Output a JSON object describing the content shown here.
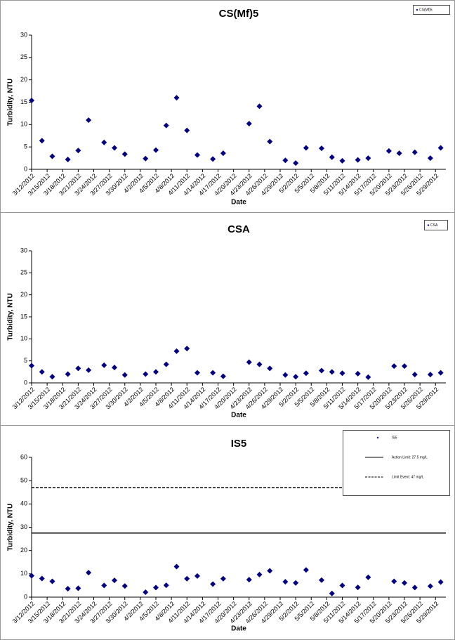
{
  "chart_data": [
    {
      "type": "scatter",
      "title": "CS(Mf)5",
      "ylabel": "Turbidity, NTU",
      "xlabel": "Date",
      "x": [
        "3/12/2012",
        "3/14/2012",
        "3/16/2012",
        "3/19/2012",
        "3/21/2012",
        "3/23/2012",
        "3/26/2012",
        "3/28/2012",
        "3/30/2012",
        "4/3/2012",
        "4/5/2012",
        "4/7/2012",
        "4/9/2012",
        "4/11/2012",
        "4/13/2012",
        "4/16/2012",
        "4/18/2012",
        "4/23/2012",
        "4/25/2012",
        "4/27/2012",
        "4/30/2012",
        "5/2/2012",
        "5/4/2012",
        "5/7/2012",
        "5/9/2012",
        "5/11/2012",
        "5/14/2012",
        "5/16/2012",
        "5/20/2012",
        "5/22/2012",
        "5/25/2012",
        "5/28/2012",
        "5/30/2012"
      ],
      "series": [
        {
          "name": "CS(Mf)5",
          "color": "#000080",
          "values": [
            15.4,
            6.4,
            2.9,
            2.2,
            4.2,
            11,
            6.0,
            4.8,
            3.4,
            2.4,
            4.3,
            9.8,
            16,
            8.7,
            3.2,
            2.3,
            3.6,
            10.2,
            14.1,
            6.2,
            2.0,
            1.4,
            4.8,
            4.7,
            2.7,
            1.9,
            2.1,
            2.5,
            4.1,
            3.6,
            3.8,
            2.5,
            4.8
          ]
        }
      ],
      "xlim": [
        "3/12/2012",
        "5/31/2012"
      ],
      "xticks": [
        "3/12/2012",
        "3/15/2012",
        "3/18/2012",
        "3/21/2012",
        "3/24/2012",
        "3/27/2012",
        "3/30/2012",
        "4/2/2012",
        "4/5/2012",
        "4/8/2012",
        "4/11/2012",
        "4/14/2012",
        "4/17/2012",
        "4/20/2012",
        "4/23/2012",
        "4/26/2012",
        "4/29/2012",
        "5/2/2012",
        "5/5/2012",
        "5/8/2012",
        "5/11/2012",
        "5/14/2012",
        "5/17/2012",
        "5/20/2012",
        "5/23/2012",
        "5/26/2012",
        "5/29/2012"
      ],
      "ylim": [
        0,
        30
      ],
      "yticks": [
        0,
        5,
        10,
        15,
        20,
        25,
        30
      ],
      "legend": "top-right"
    },
    {
      "type": "scatter",
      "title": "CSA",
      "ylabel": "Turbidity, NTU",
      "xlabel": "Date",
      "x": [
        "3/12/2012",
        "3/14/2012",
        "3/16/2012",
        "3/19/2012",
        "3/21/2012",
        "3/23/2012",
        "3/26/2012",
        "3/28/2012",
        "3/30/2012",
        "4/3/2012",
        "4/5/2012",
        "4/7/2012",
        "4/9/2012",
        "4/11/2012",
        "4/13/2012",
        "4/16/2012",
        "4/18/2012",
        "4/23/2012",
        "4/25/2012",
        "4/27/2012",
        "4/30/2012",
        "5/2/2012",
        "5/4/2012",
        "5/7/2012",
        "5/9/2012",
        "5/11/2012",
        "5/14/2012",
        "5/16/2012",
        "5/21/2012",
        "5/23/2012",
        "5/25/2012",
        "5/28/2012",
        "5/30/2012"
      ],
      "series": [
        {
          "name": "CSA",
          "color": "#000080",
          "values": [
            3.9,
            2.5,
            1.4,
            2.0,
            3.3,
            2.9,
            4.0,
            3.5,
            1.8,
            2.0,
            2.5,
            4.2,
            7.2,
            7.8,
            2.3,
            2.3,
            1.5,
            4.7,
            4.2,
            3.3,
            1.8,
            1.4,
            2.2,
            2.8,
            2.5,
            2.2,
            2.1,
            1.3,
            3.8,
            3.8,
            1.9,
            1.9,
            2.3
          ]
        }
      ],
      "xlim": [
        "3/12/2012",
        "5/31/2012"
      ],
      "xticks": [
        "3/12/2012",
        "3/15/2012",
        "3/18/2012",
        "3/21/2012",
        "3/24/2012",
        "3/27/2012",
        "3/30/2012",
        "4/2/2012",
        "4/5/2012",
        "4/8/2012",
        "4/11/2012",
        "4/14/2012",
        "4/17/2012",
        "4/20/2012",
        "4/23/2012",
        "4/26/2012",
        "4/29/2012",
        "5/2/2012",
        "5/5/2012",
        "5/8/2012",
        "5/11/2012",
        "5/14/2012",
        "5/17/2012",
        "5/20/2012",
        "5/23/2012",
        "5/26/2012",
        "5/29/2012"
      ],
      "ylim": [
        0,
        30
      ],
      "yticks": [
        0,
        5,
        10,
        15,
        20,
        25,
        30
      ],
      "legend": "top-right"
    },
    {
      "type": "scatter",
      "title": "IS5",
      "ylabel": "Turbidity, NTU",
      "xlabel": "Date",
      "x": [
        "3/12/2012",
        "3/14/2012",
        "3/16/2012",
        "3/19/2012",
        "3/21/2012",
        "3/23/2012",
        "3/26/2012",
        "3/28/2012",
        "3/30/2012",
        "4/3/2012",
        "4/5/2012",
        "4/7/2012",
        "4/9/2012",
        "4/11/2012",
        "4/13/2012",
        "4/16/2012",
        "4/18/2012",
        "4/23/2012",
        "4/25/2012",
        "4/27/2012",
        "4/30/2012",
        "5/2/2012",
        "5/4/2012",
        "5/7/2012",
        "5/9/2012",
        "5/11/2012",
        "5/14/2012",
        "5/16/2012",
        "5/21/2012",
        "5/23/2012",
        "5/25/2012",
        "5/28/2012",
        "5/30/2012"
      ],
      "series": [
        {
          "name": "IS5",
          "color": "#000080",
          "values": [
            9.2,
            8.0,
            6.8,
            3.6,
            3.8,
            10.5,
            5.0,
            7.2,
            4.8,
            2.1,
            4.1,
            5.1,
            13.1,
            7.9,
            9.1,
            5.6,
            7.9,
            7.5,
            9.7,
            11.3,
            6.6,
            6.1,
            11.7,
            7.3,
            1.6,
            5.0,
            4.2,
            8.5,
            6.8,
            6.1,
            4.1,
            4.7,
            6.5
          ]
        }
      ],
      "reference_lines": [
        {
          "name": "Action Limit: 27.5 mg/L",
          "value": 27.5,
          "style": "solid",
          "color": "#000000"
        },
        {
          "name": "Limit Event: 47 mg/L",
          "value": 47,
          "style": "dashed",
          "color": "#000000"
        }
      ],
      "xlim": [
        "3/12/2012",
        "5/31/2012"
      ],
      "xticks": [
        "3/12/2012",
        "3/15/2012",
        "3/18/2012",
        "3/21/2012",
        "3/24/2012",
        "3/27/2012",
        "3/30/2012",
        "4/2/2012",
        "4/5/2012",
        "4/8/2012",
        "4/11/2012",
        "4/14/2012",
        "4/17/2012",
        "4/20/2012",
        "4/23/2012",
        "4/26/2012",
        "4/29/2012",
        "5/2/2012",
        "5/5/2012",
        "5/8/2012",
        "5/11/2012",
        "5/14/2012",
        "5/17/2012",
        "5/20/2012",
        "5/23/2012",
        "5/26/2012",
        "5/29/2012"
      ],
      "ylim": [
        0,
        60
      ],
      "yticks": [
        0,
        10,
        20,
        30,
        40,
        50,
        60
      ],
      "legend": "top-right"
    }
  ]
}
